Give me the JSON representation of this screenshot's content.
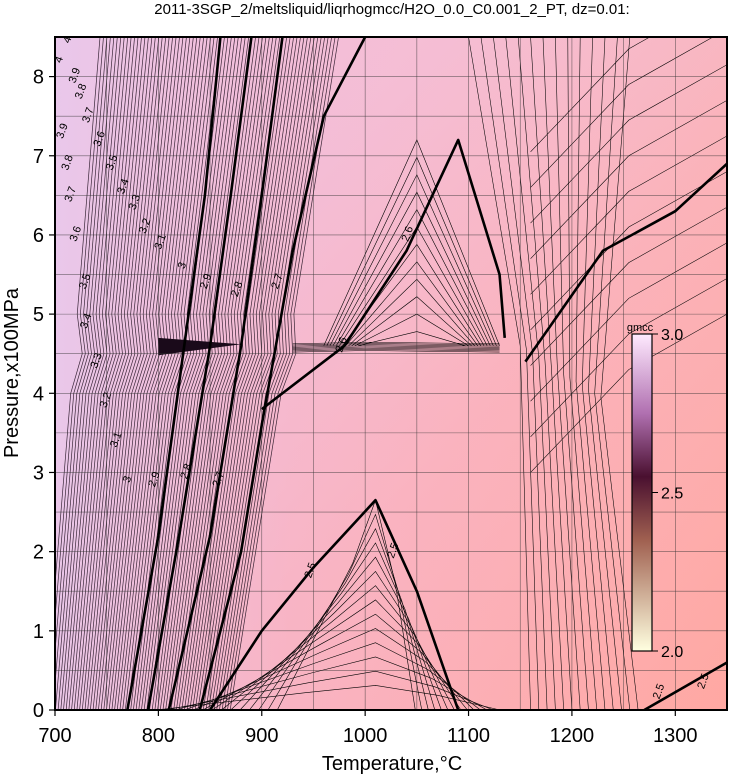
{
  "chart_data": {
    "type": "heatmap",
    "title": "2011-3SGP_2/meltsliquid/liqrhogmcc/H2O_0.0_C0.001_2_PT, dz=0.01:",
    "xlabel": "Temperature,°C",
    "ylabel": "Pressure,x100MPa",
    "xlim": [
      700,
      1350
    ],
    "ylim": [
      0,
      8.5
    ],
    "x_ticks": [
      700,
      800,
      900,
      1000,
      1100,
      1200,
      1300
    ],
    "y_ticks": [
      0,
      1,
      2,
      3,
      4,
      5,
      6,
      7,
      8
    ],
    "grid": true,
    "colorbar": {
      "label": "gmcc",
      "min": 2.0,
      "max": 3.0,
      "ticks": [
        "2.0",
        "2.5",
        "3.0"
      ],
      "colors": [
        "#ffffe0",
        "#7a3a3a",
        "#3a0a3a",
        "#ffe8ff"
      ]
    },
    "contour_levels_bold": [
      {
        "label": "2.5",
        "x": [
          850,
          900,
          950,
          1010,
          1050,
          1090
        ],
        "y": [
          0,
          1.0,
          1.8,
          2.65,
          1.5,
          0
        ]
      },
      {
        "label": "2.6",
        "x": [
          900,
          980,
          1040,
          1090,
          1130,
          1135
        ],
        "y": [
          3.8,
          4.6,
          5.8,
          7.2,
          5.5,
          4.7
        ]
      },
      {
        "label": "2.6",
        "x": [
          1155,
          1230,
          1300,
          1350
        ],
        "y": [
          4.4,
          5.8,
          6.3,
          6.9
        ]
      },
      {
        "label": "2.7",
        "x": [
          840,
          880,
          900,
          930,
          960,
          1000
        ],
        "y": [
          0,
          2.0,
          3.6,
          5.8,
          7.5,
          8.5
        ]
      },
      {
        "label": "2.8",
        "x": [
          810,
          850,
          880,
          900,
          920
        ],
        "y": [
          0,
          2.2,
          4.6,
          6.5,
          8.5
        ]
      },
      {
        "label": "2.9",
        "x": [
          790,
          820,
          850,
          870,
          890
        ],
        "y": [
          0,
          2.2,
          4.6,
          6.5,
          8.5
        ]
      },
      {
        "label": "3",
        "x": [
          770,
          800,
          825,
          845,
          860
        ],
        "y": [
          0,
          2.2,
          4.6,
          6.5,
          8.5
        ]
      },
      {
        "label": "2.5",
        "x": [
          1270,
          1350
        ],
        "y": [
          0,
          0.6
        ]
      }
    ],
    "contour_labels": [
      {
        "text": "4",
        "x": 707,
        "y": 8.2
      },
      {
        "text": "4",
        "x": 715,
        "y": 8.45
      },
      {
        "text": "3.9",
        "x": 722,
        "y": 8.0
      },
      {
        "text": "3.9",
        "x": 710,
        "y": 7.3
      },
      {
        "text": "3.8",
        "x": 728,
        "y": 7.8
      },
      {
        "text": "3.8",
        "x": 715,
        "y": 6.9
      },
      {
        "text": "3.7",
        "x": 735,
        "y": 7.5
      },
      {
        "text": "3.7",
        "x": 718,
        "y": 6.5
      },
      {
        "text": "3.6",
        "x": 746,
        "y": 7.2
      },
      {
        "text": "3.6",
        "x": 723,
        "y": 6.0
      },
      {
        "text": "3.5",
        "x": 758,
        "y": 6.9
      },
      {
        "text": "3.5",
        "x": 732,
        "y": 5.4
      },
      {
        "text": "3.4",
        "x": 769,
        "y": 6.6
      },
      {
        "text": "3.4",
        "x": 733,
        "y": 4.9
      },
      {
        "text": "3.3",
        "x": 780,
        "y": 6.4
      },
      {
        "text": "3.3",
        "x": 743,
        "y": 4.4
      },
      {
        "text": "3.2",
        "x": 790,
        "y": 6.1
      },
      {
        "text": "3.2",
        "x": 752,
        "y": 3.9
      },
      {
        "text": "3.1",
        "x": 805,
        "y": 5.9
      },
      {
        "text": "3.1",
        "x": 762,
        "y": 3.4
      },
      {
        "text": "3",
        "x": 826,
        "y": 5.6
      },
      {
        "text": "3",
        "x": 773,
        "y": 2.9
      },
      {
        "text": "2.9",
        "x": 849,
        "y": 5.4
      },
      {
        "text": "2.9",
        "x": 799,
        "y": 2.9
      },
      {
        "text": "2.8",
        "x": 879,
        "y": 5.3
      },
      {
        "text": "2.8",
        "x": 830,
        "y": 3.0
      },
      {
        "text": "2.7",
        "x": 918,
        "y": 5.4
      },
      {
        "text": "2.7",
        "x": 861,
        "y": 2.9
      },
      {
        "text": "2.6",
        "x": 1044,
        "y": 6.0
      },
      {
        "text": "2.6",
        "x": 980,
        "y": 4.6
      },
      {
        "text": "2.5",
        "x": 1030,
        "y": 2.0
      },
      {
        "text": "2.5",
        "x": 950,
        "y": 1.75
      },
      {
        "text": "2.5",
        "x": 1287,
        "y": 0.22
      },
      {
        "text": "2.5",
        "x": 1330,
        "y": 0.35
      }
    ]
  }
}
